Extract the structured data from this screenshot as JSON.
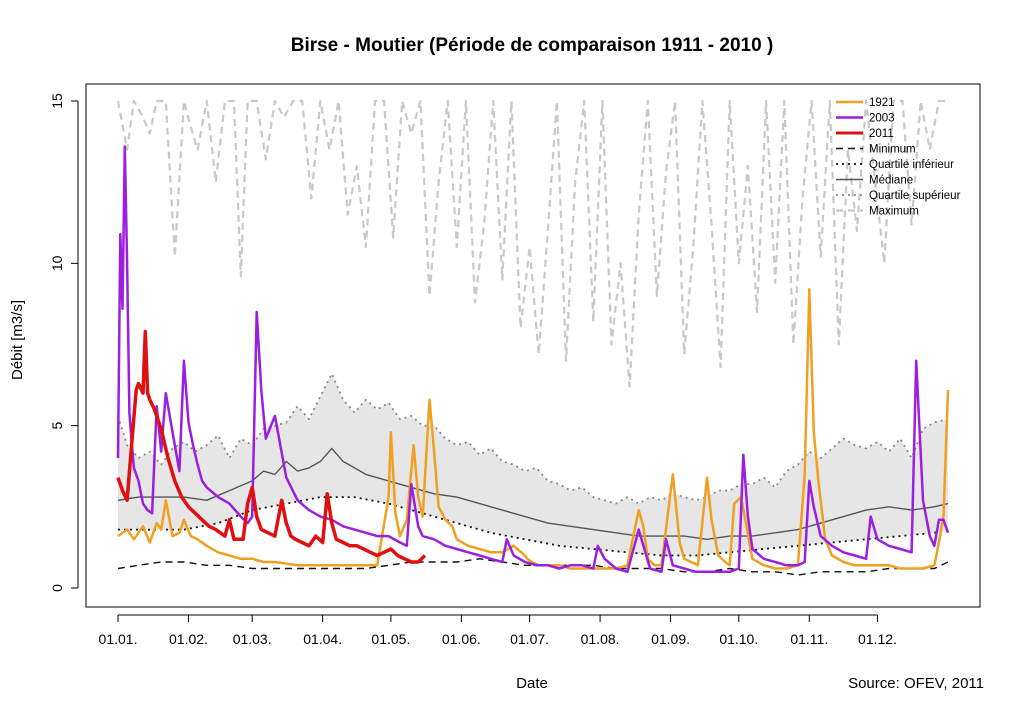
{
  "chart_data": {
    "type": "line",
    "title": "Birse - Moutier (Période de comparaison 1911 - 2010 )",
    "xlabel": "Date",
    "ylabel": "Débit [m3/s]",
    "source": "Source: OFEV, 2011",
    "ylim": [
      0,
      15
    ],
    "yticks": [
      0,
      5,
      10,
      15
    ],
    "xlim": [
      1,
      366
    ],
    "xticks": [
      {
        "day": 1,
        "label": "01.01."
      },
      {
        "day": 32,
        "label": "01.02."
      },
      {
        "day": 60,
        "label": "01.03."
      },
      {
        "day": 91,
        "label": "01.04."
      },
      {
        "day": 121,
        "label": "01.05."
      },
      {
        "day": 152,
        "label": "01.06."
      },
      {
        "day": 182,
        "label": "01.07."
      },
      {
        "day": 213,
        "label": "01.08."
      },
      {
        "day": 244,
        "label": "01.09."
      },
      {
        "day": 274,
        "label": "01.10."
      },
      {
        "day": 305,
        "label": "01.11."
      },
      {
        "day": 335,
        "label": "01.12."
      }
    ],
    "grid": false,
    "legend_position": "top-right",
    "band_fill": "#e6e6e6",
    "series": [
      {
        "name": "1921",
        "color": "#f0a01e",
        "style": "solid",
        "width": 2.5,
        "x": [
          1,
          5,
          8,
          12,
          15,
          18,
          20,
          22,
          25,
          28,
          30,
          33,
          36,
          40,
          45,
          50,
          55,
          60,
          65,
          70,
          80,
          90,
          100,
          110,
          115,
          120,
          121,
          123,
          125,
          128,
          131,
          133,
          135,
          138,
          140,
          142,
          145,
          148,
          150,
          155,
          160,
          165,
          170,
          175,
          180,
          181,
          183,
          186,
          190,
          195,
          200,
          205,
          210,
          215,
          220,
          225,
          230,
          232,
          234,
          237,
          240,
          245,
          248,
          250,
          253,
          256,
          260,
          262,
          265,
          268,
          270,
          272,
          275,
          280,
          285,
          290,
          295,
          300,
          303,
          305,
          307,
          309,
          312,
          315,
          320,
          325,
          330,
          335,
          340,
          345,
          350,
          355,
          360,
          362,
          364,
          366
        ],
        "y": [
          1.6,
          1.8,
          1.5,
          1.9,
          1.4,
          2.0,
          1.8,
          2.7,
          1.6,
          1.7,
          2.1,
          1.6,
          1.5,
          1.3,
          1.1,
          1.0,
          0.9,
          0.9,
          0.8,
          0.8,
          0.7,
          0.7,
          0.7,
          0.7,
          0.7,
          2.8,
          4.8,
          2.3,
          1.6,
          2.1,
          4.4,
          2.8,
          2.2,
          5.8,
          4.2,
          2.5,
          2.1,
          1.9,
          1.5,
          1.3,
          1.2,
          1.1,
          1.1,
          1.3,
          1.0,
          0.9,
          0.8,
          0.7,
          0.7,
          0.7,
          0.6,
          0.6,
          0.6,
          0.6,
          0.6,
          0.7,
          2.4,
          1.9,
          0.9,
          0.7,
          0.7,
          3.5,
          1.4,
          0.9,
          0.8,
          0.7,
          3.4,
          2.1,
          1.0,
          0.8,
          0.7,
          2.6,
          2.8,
          0.9,
          0.7,
          0.6,
          0.6,
          0.7,
          3.5,
          9.2,
          4.8,
          3.3,
          1.5,
          1.0,
          0.8,
          0.7,
          0.7,
          0.7,
          0.7,
          0.6,
          0.6,
          0.6,
          0.7,
          1.4,
          2.2,
          6.1
        ]
      },
      {
        "name": "2003",
        "color": "#9b1fe0",
        "style": "solid",
        "width": 2.5,
        "x": [
          1,
          2,
          3,
          4,
          5,
          6,
          7,
          8,
          10,
          12,
          14,
          16,
          18,
          20,
          22,
          24,
          26,
          28,
          30,
          32,
          34,
          36,
          38,
          40,
          45,
          50,
          55,
          58,
          60,
          62,
          64,
          66,
          70,
          75,
          80,
          85,
          90,
          95,
          100,
          105,
          110,
          115,
          120,
          125,
          128,
          130,
          133,
          135,
          140,
          145,
          150,
          155,
          160,
          165,
          170,
          172,
          175,
          180,
          185,
          190,
          195,
          200,
          205,
          210,
          212,
          215,
          220,
          225,
          230,
          235,
          240,
          242,
          245,
          250,
          255,
          260,
          265,
          270,
          274,
          276,
          278,
          280,
          285,
          290,
          295,
          300,
          303,
          305,
          307,
          310,
          315,
          320,
          325,
          330,
          332,
          335,
          340,
          345,
          350,
          352,
          355,
          358,
          360,
          362,
          364,
          366
        ],
        "y": [
          4.0,
          10.9,
          8.6,
          13.6,
          10.0,
          5.4,
          4.5,
          3.7,
          3.3,
          2.6,
          2.4,
          2.3,
          5.6,
          4.2,
          6.0,
          5.2,
          4.4,
          3.6,
          7.0,
          5.1,
          4.4,
          3.8,
          3.3,
          3.1,
          2.8,
          2.6,
          2.2,
          2.0,
          2.2,
          8.5,
          6.1,
          4.6,
          5.3,
          3.4,
          2.7,
          2.4,
          2.2,
          2.1,
          1.9,
          1.8,
          1.7,
          1.6,
          1.6,
          1.4,
          1.3,
          3.2,
          1.9,
          1.6,
          1.5,
          1.3,
          1.2,
          1.1,
          1.0,
          0.9,
          0.8,
          1.5,
          1.0,
          0.8,
          0.7,
          0.7,
          0.6,
          0.7,
          0.7,
          0.6,
          1.3,
          0.9,
          0.6,
          0.5,
          1.8,
          0.6,
          0.5,
          1.5,
          0.7,
          0.6,
          0.5,
          0.5,
          0.5,
          0.5,
          0.6,
          4.1,
          2.2,
          1.2,
          0.9,
          0.8,
          0.7,
          0.7,
          0.8,
          3.3,
          2.5,
          1.6,
          1.3,
          1.1,
          1.0,
          0.9,
          2.2,
          1.5,
          1.3,
          1.2,
          1.1,
          7.0,
          2.7,
          1.6,
          1.3,
          2.1,
          2.1,
          1.7
        ]
      },
      {
        "name": "2011",
        "color": "#e01010",
        "style": "solid",
        "width": 3.5,
        "x": [
          1,
          3,
          5,
          7,
          9,
          10,
          12,
          13,
          14,
          15,
          17,
          20,
          23,
          26,
          29,
          32,
          35,
          38,
          41,
          44,
          46,
          48,
          50,
          52,
          54,
          56,
          58,
          60,
          62,
          64,
          67,
          70,
          73,
          75,
          77,
          79,
          82,
          85,
          88,
          91,
          93,
          95,
          97,
          100,
          103,
          106,
          109,
          112,
          115,
          118,
          121,
          124,
          127,
          130,
          133,
          136
        ],
        "y": [
          3.4,
          3.0,
          2.7,
          4.4,
          6.1,
          6.3,
          6.0,
          7.9,
          6.0,
          5.8,
          5.5,
          4.9,
          4.0,
          3.3,
          2.8,
          2.5,
          2.3,
          2.1,
          1.9,
          1.8,
          1.7,
          1.6,
          2.1,
          1.5,
          1.5,
          1.5,
          2.6,
          3.1,
          2.2,
          1.8,
          1.7,
          1.6,
          2.7,
          2.0,
          1.6,
          1.5,
          1.4,
          1.3,
          1.6,
          1.4,
          2.9,
          2.0,
          1.5,
          1.4,
          1.3,
          1.3,
          1.2,
          1.1,
          1.0,
          1.1,
          1.2,
          1.0,
          0.9,
          0.8,
          0.8,
          1.0
        ]
      },
      {
        "name": "Minimum",
        "color": "#111111",
        "style": "dashed",
        "width": 1.4,
        "x": [
          1,
          10,
          20,
          30,
          40,
          50,
          60,
          70,
          80,
          90,
          100,
          110,
          120,
          130,
          140,
          150,
          160,
          170,
          180,
          190,
          200,
          210,
          220,
          230,
          240,
          250,
          260,
          270,
          280,
          290,
          300,
          310,
          320,
          330,
          340,
          350,
          360,
          366
        ],
        "y": [
          0.6,
          0.7,
          0.8,
          0.8,
          0.7,
          0.7,
          0.6,
          0.6,
          0.6,
          0.6,
          0.6,
          0.6,
          0.7,
          0.8,
          0.8,
          0.8,
          0.9,
          0.8,
          0.7,
          0.7,
          0.7,
          0.7,
          0.6,
          0.6,
          0.6,
          0.5,
          0.5,
          0.6,
          0.5,
          0.5,
          0.4,
          0.5,
          0.5,
          0.5,
          0.6,
          0.6,
          0.6,
          0.8
        ]
      },
      {
        "name": "Quartile inférieur",
        "color": "#111111",
        "style": "dotted",
        "width": 1.8,
        "x": [
          1,
          15,
          30,
          45,
          60,
          75,
          90,
          105,
          120,
          135,
          150,
          165,
          180,
          195,
          210,
          225,
          240,
          255,
          270,
          285,
          300,
          315,
          330,
          345,
          360,
          366
        ],
        "y": [
          1.8,
          1.8,
          1.8,
          2.0,
          2.4,
          2.6,
          2.8,
          2.8,
          2.6,
          2.3,
          2.0,
          1.7,
          1.5,
          1.3,
          1.2,
          1.1,
          1.0,
          1.0,
          1.1,
          1.2,
          1.3,
          1.4,
          1.5,
          1.6,
          1.7,
          1.8
        ]
      },
      {
        "name": "Médiane",
        "color": "#555555",
        "style": "solid",
        "width": 1.4,
        "x": [
          1,
          10,
          20,
          30,
          40,
          50,
          60,
          65,
          70,
          75,
          80,
          85,
          90,
          95,
          100,
          105,
          110,
          120,
          130,
          140,
          150,
          160,
          170,
          180,
          190,
          200,
          210,
          220,
          230,
          240,
          250,
          260,
          270,
          280,
          290,
          300,
          310,
          320,
          330,
          340,
          350,
          360,
          366
        ],
        "y": [
          2.7,
          2.8,
          2.8,
          2.8,
          2.7,
          3.0,
          3.3,
          3.6,
          3.5,
          3.9,
          3.6,
          3.7,
          3.9,
          4.3,
          3.9,
          3.7,
          3.5,
          3.3,
          3.1,
          2.9,
          2.8,
          2.6,
          2.4,
          2.2,
          2.0,
          1.9,
          1.8,
          1.7,
          1.6,
          1.6,
          1.6,
          1.5,
          1.6,
          1.6,
          1.7,
          1.8,
          2.0,
          2.2,
          2.4,
          2.5,
          2.4,
          2.5,
          2.6
        ]
      },
      {
        "name": "Quartile supérieur",
        "color": "#888888",
        "style": "dotted",
        "width": 1.8,
        "x": [
          1,
          5,
          10,
          15,
          20,
          25,
          30,
          35,
          40,
          45,
          50,
          55,
          60,
          65,
          70,
          75,
          80,
          85,
          90,
          95,
          100,
          105,
          110,
          115,
          120,
          125,
          130,
          135,
          140,
          145,
          150,
          155,
          160,
          165,
          170,
          175,
          180,
          185,
          190,
          195,
          200,
          205,
          210,
          215,
          220,
          225,
          230,
          235,
          240,
          245,
          250,
          255,
          260,
          265,
          270,
          275,
          280,
          285,
          290,
          295,
          300,
          305,
          310,
          315,
          320,
          325,
          330,
          335,
          340,
          345,
          350,
          355,
          360,
          366
        ],
        "y": [
          5.3,
          4.4,
          4.0,
          4.2,
          3.8,
          4.3,
          4.5,
          4.2,
          4.4,
          4.7,
          4.0,
          4.6,
          4.4,
          4.9,
          5.0,
          5.1,
          5.6,
          5.2,
          5.9,
          6.6,
          5.8,
          5.4,
          5.8,
          5.5,
          5.7,
          5.2,
          5.3,
          5.0,
          5.0,
          4.6,
          4.4,
          4.5,
          4.1,
          4.3,
          3.9,
          3.8,
          3.6,
          3.7,
          3.3,
          3.2,
          3.0,
          3.1,
          2.8,
          2.7,
          2.6,
          2.8,
          2.6,
          2.8,
          2.7,
          2.9,
          2.8,
          2.7,
          2.8,
          3.0,
          3.0,
          3.2,
          3.2,
          3.4,
          3.1,
          3.6,
          3.8,
          4.2,
          4.0,
          4.3,
          4.6,
          4.4,
          4.3,
          4.5,
          4.2,
          4.6,
          4.0,
          4.9,
          5.1,
          5.2
        ]
      },
      {
        "name": "Maximum",
        "color": "#c8c8c8",
        "style": "dashed",
        "width": 2.2,
        "x": [
          1,
          5,
          8,
          12,
          15,
          18,
          22,
          26,
          30,
          33,
          36,
          40,
          44,
          48,
          52,
          55,
          58,
          62,
          66,
          70,
          74,
          78,
          82,
          86,
          90,
          94,
          98,
          102,
          106,
          110,
          114,
          118,
          122,
          126,
          130,
          134,
          138,
          142,
          146,
          150,
          154,
          158,
          162,
          166,
          170,
          174,
          178,
          182,
          186,
          190,
          194,
          198,
          202,
          206,
          210,
          214,
          218,
          222,
          226,
          230,
          234,
          238,
          242,
          246,
          250,
          254,
          258,
          262,
          266,
          270,
          274,
          278,
          282,
          286,
          290,
          294,
          298,
          302,
          306,
          310,
          314,
          318,
          322,
          326,
          330,
          334,
          338,
          342,
          346,
          350,
          354,
          358,
          362,
          366
        ],
        "y": [
          15,
          13.5,
          15,
          14.5,
          14,
          15,
          15,
          10.2,
          15,
          14.2,
          13.5,
          15,
          12.5,
          15,
          15,
          9.6,
          15,
          15,
          13.2,
          15,
          14.5,
          15,
          15,
          12.0,
          15,
          13.5,
          15,
          11.5,
          13.0,
          10.5,
          15,
          15,
          10.8,
          15,
          14.0,
          15,
          9.0,
          12.5,
          15,
          10.5,
          15,
          8.8,
          11.2,
          15,
          9.5,
          15,
          8.0,
          10.5,
          7.2,
          11.0,
          15,
          7.0,
          12.5,
          15,
          8.2,
          15,
          7.5,
          10.0,
          6.2,
          11.5,
          15,
          9.0,
          12.8,
          15,
          7.2,
          10.5,
          15,
          11.2,
          6.8,
          15,
          10.0,
          13.0,
          8.5,
          15,
          9.4,
          15,
          7.5,
          12.0,
          15,
          10.2,
          15,
          7.5,
          13.5,
          11.0,
          15,
          12.5,
          10.0,
          15,
          15,
          11.2,
          15,
          13.5,
          15,
          15
        ]
      }
    ]
  }
}
